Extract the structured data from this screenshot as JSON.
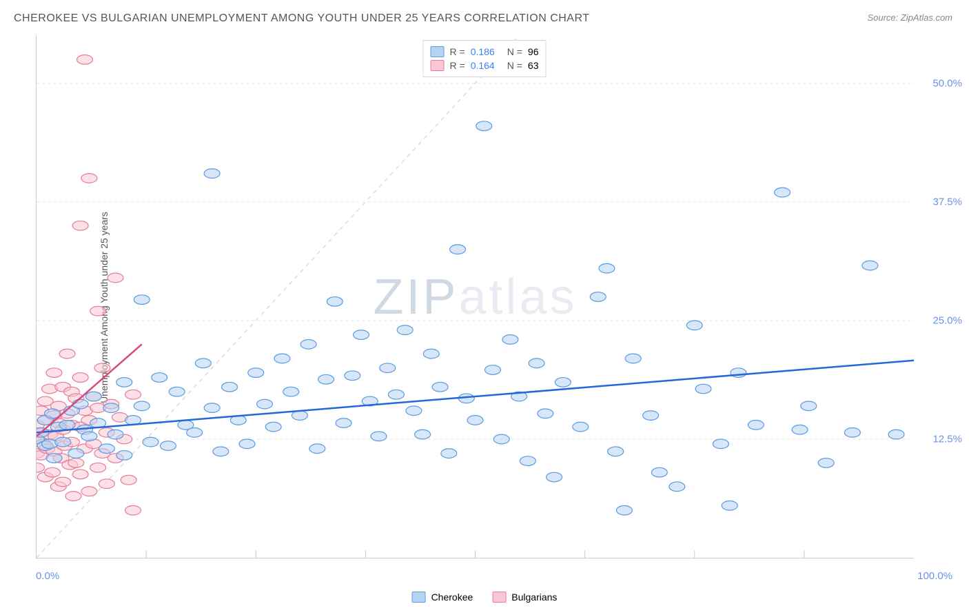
{
  "title": "CHEROKEE VS BULGARIAN UNEMPLOYMENT AMONG YOUTH UNDER 25 YEARS CORRELATION CHART",
  "source": "Source: ZipAtlas.com",
  "ylabel": "Unemployment Among Youth under 25 years",
  "xlabel_min": "0.0%",
  "xlabel_max": "100.0%",
  "watermark_zip": "ZIP",
  "watermark_rest": "atlas",
  "chart": {
    "type": "scatter",
    "background_color": "#ffffff",
    "grid_color": "#e5e5e5",
    "axis_color": "#c8c8c8",
    "tick_label_color": "#6992e8",
    "text_color": "#555555",
    "identity_line": {
      "color": "#dcdcdc",
      "dash": "6 6",
      "x1": 0,
      "y1": 0,
      "x2": 55,
      "y2": 55
    },
    "xlim": [
      0,
      100
    ],
    "ylim": [
      0,
      55
    ],
    "xtick_step": 12.5,
    "ytick_step": 12.5,
    "ytick_labels": {
      "12.5": "12.5%",
      "25.0": "25.0%",
      "37.5": "37.5%",
      "50.0": "50.0%"
    },
    "marker_radius": 9,
    "marker_opacity": 0.55,
    "marker_stroke_width": 1.2,
    "series": [
      {
        "name": "Cherokee",
        "label": "Cherokee",
        "fill": "#b7d3f4",
        "stroke": "#5a9be0",
        "swatch_fill": "#b7d3f4",
        "swatch_stroke": "#5a9be0",
        "R": "0.186",
        "N": "96",
        "trendline": {
          "color": "#2468d8",
          "width": 2.5,
          "x1": 0,
          "y1": 13.2,
          "x2": 100,
          "y2": 20.8
        },
        "points": [
          [
            0,
            12.5
          ],
          [
            0.5,
            13.2
          ],
          [
            1,
            14.5
          ],
          [
            1,
            11.8
          ],
          [
            1.5,
            12.0
          ],
          [
            1.8,
            15.2
          ],
          [
            2,
            10.5
          ],
          [
            2.5,
            13.8
          ],
          [
            3,
            12.2
          ],
          [
            3.5,
            14.0
          ],
          [
            4,
            15.5
          ],
          [
            4.5,
            11.0
          ],
          [
            5,
            16.2
          ],
          [
            5.5,
            13.5
          ],
          [
            6,
            12.8
          ],
          [
            6.5,
            17.0
          ],
          [
            7,
            14.2
          ],
          [
            8,
            11.5
          ],
          [
            8.5,
            15.8
          ],
          [
            9,
            13.0
          ],
          [
            10,
            18.5
          ],
          [
            10,
            10.8
          ],
          [
            11,
            14.5
          ],
          [
            12,
            27.2
          ],
          [
            12,
            16.0
          ],
          [
            13,
            12.2
          ],
          [
            14,
            19.0
          ],
          [
            15,
            11.8
          ],
          [
            16,
            17.5
          ],
          [
            17,
            14.0
          ],
          [
            18,
            13.2
          ],
          [
            19,
            20.5
          ],
          [
            20,
            15.8
          ],
          [
            20,
            40.5
          ],
          [
            21,
            11.2
          ],
          [
            22,
            18.0
          ],
          [
            23,
            14.5
          ],
          [
            24,
            12.0
          ],
          [
            25,
            19.5
          ],
          [
            26,
            16.2
          ],
          [
            27,
            13.8
          ],
          [
            28,
            21.0
          ],
          [
            29,
            17.5
          ],
          [
            30,
            15.0
          ],
          [
            31,
            22.5
          ],
          [
            32,
            11.5
          ],
          [
            33,
            18.8
          ],
          [
            34,
            27.0
          ],
          [
            35,
            14.2
          ],
          [
            36,
            19.2
          ],
          [
            37,
            23.5
          ],
          [
            38,
            16.5
          ],
          [
            39,
            12.8
          ],
          [
            40,
            20.0
          ],
          [
            41,
            17.2
          ],
          [
            42,
            24.0
          ],
          [
            43,
            15.5
          ],
          [
            44,
            13.0
          ],
          [
            45,
            21.5
          ],
          [
            46,
            18.0
          ],
          [
            47,
            11.0
          ],
          [
            48,
            32.5
          ],
          [
            49,
            16.8
          ],
          [
            50,
            14.5
          ],
          [
            51,
            45.5
          ],
          [
            52,
            19.8
          ],
          [
            53,
            12.5
          ],
          [
            54,
            23.0
          ],
          [
            55,
            17.0
          ],
          [
            56,
            10.2
          ],
          [
            57,
            20.5
          ],
          [
            58,
            15.2
          ],
          [
            59,
            8.5
          ],
          [
            60,
            18.5
          ],
          [
            62,
            13.8
          ],
          [
            64,
            27.5
          ],
          [
            65,
            30.5
          ],
          [
            66,
            11.2
          ],
          [
            67,
            5.0
          ],
          [
            68,
            21.0
          ],
          [
            70,
            15.0
          ],
          [
            71,
            9.0
          ],
          [
            73,
            7.5
          ],
          [
            75,
            24.5
          ],
          [
            76,
            17.8
          ],
          [
            78,
            12.0
          ],
          [
            79,
            5.5
          ],
          [
            80,
            19.5
          ],
          [
            82,
            14.0
          ],
          [
            85,
            38.5
          ],
          [
            87,
            13.5
          ],
          [
            88,
            16.0
          ],
          [
            90,
            10.0
          ],
          [
            93,
            13.2
          ],
          [
            95,
            30.8
          ],
          [
            98,
            13.0
          ]
        ]
      },
      {
        "name": "Bulgarians",
        "label": "Bulgarians",
        "fill": "#f9c8d4",
        "stroke": "#e87a9a",
        "swatch_fill": "#f9c8d4",
        "swatch_stroke": "#e87a9a",
        "R": "0.164",
        "N": "63",
        "trendline": {
          "color": "#d94a7a",
          "width": 2.5,
          "x1": 0,
          "y1": 12.8,
          "x2": 12,
          "y2": 22.5
        },
        "points": [
          [
            0,
            11.0
          ],
          [
            0,
            12.5
          ],
          [
            0,
            14.0
          ],
          [
            0,
            9.5
          ],
          [
            0.3,
            13.2
          ],
          [
            0.5,
            15.5
          ],
          [
            0.5,
            10.8
          ],
          [
            0.8,
            12.0
          ],
          [
            1,
            16.5
          ],
          [
            1,
            8.5
          ],
          [
            1,
            14.5
          ],
          [
            1.2,
            11.5
          ],
          [
            1.5,
            17.8
          ],
          [
            1.5,
            13.0
          ],
          [
            1.8,
            9.0
          ],
          [
            2,
            15.0
          ],
          [
            2,
            11.2
          ],
          [
            2,
            19.5
          ],
          [
            2.2,
            12.8
          ],
          [
            2.5,
            14.2
          ],
          [
            2.5,
            7.5
          ],
          [
            2.5,
            16.0
          ],
          [
            2.8,
            10.5
          ],
          [
            3,
            13.5
          ],
          [
            3,
            8.0
          ],
          [
            3,
            18.0
          ],
          [
            3.2,
            11.8
          ],
          [
            3.5,
            15.2
          ],
          [
            3.5,
            21.5
          ],
          [
            3.8,
            9.8
          ],
          [
            4,
            14.0
          ],
          [
            4,
            12.2
          ],
          [
            4,
            17.5
          ],
          [
            4.2,
            6.5
          ],
          [
            4.5,
            10.0
          ],
          [
            4.5,
            16.8
          ],
          [
            5,
            13.8
          ],
          [
            5,
            8.8
          ],
          [
            5,
            19.0
          ],
          [
            5,
            35.0
          ],
          [
            5.5,
            11.5
          ],
          [
            5.5,
            15.5
          ],
          [
            5.5,
            52.5
          ],
          [
            6,
            7.0
          ],
          [
            6,
            14.5
          ],
          [
            6,
            40.0
          ],
          [
            6.5,
            12.0
          ],
          [
            6.5,
            17.0
          ],
          [
            7,
            9.5
          ],
          [
            7,
            15.8
          ],
          [
            7,
            26.0
          ],
          [
            7.5,
            11.0
          ],
          [
            7.5,
            20.0
          ],
          [
            8,
            13.2
          ],
          [
            8,
            7.8
          ],
          [
            8.5,
            16.2
          ],
          [
            9,
            10.5
          ],
          [
            9,
            29.5
          ],
          [
            9.5,
            14.8
          ],
          [
            10,
            12.5
          ],
          [
            10.5,
            8.2
          ],
          [
            11,
            17.2
          ],
          [
            11,
            5.0
          ]
        ]
      }
    ]
  },
  "legend_top": {
    "r_label": "R =",
    "n_label": "N ="
  },
  "legend_bottom": {
    "items": [
      "Cherokee",
      "Bulgarians"
    ]
  }
}
